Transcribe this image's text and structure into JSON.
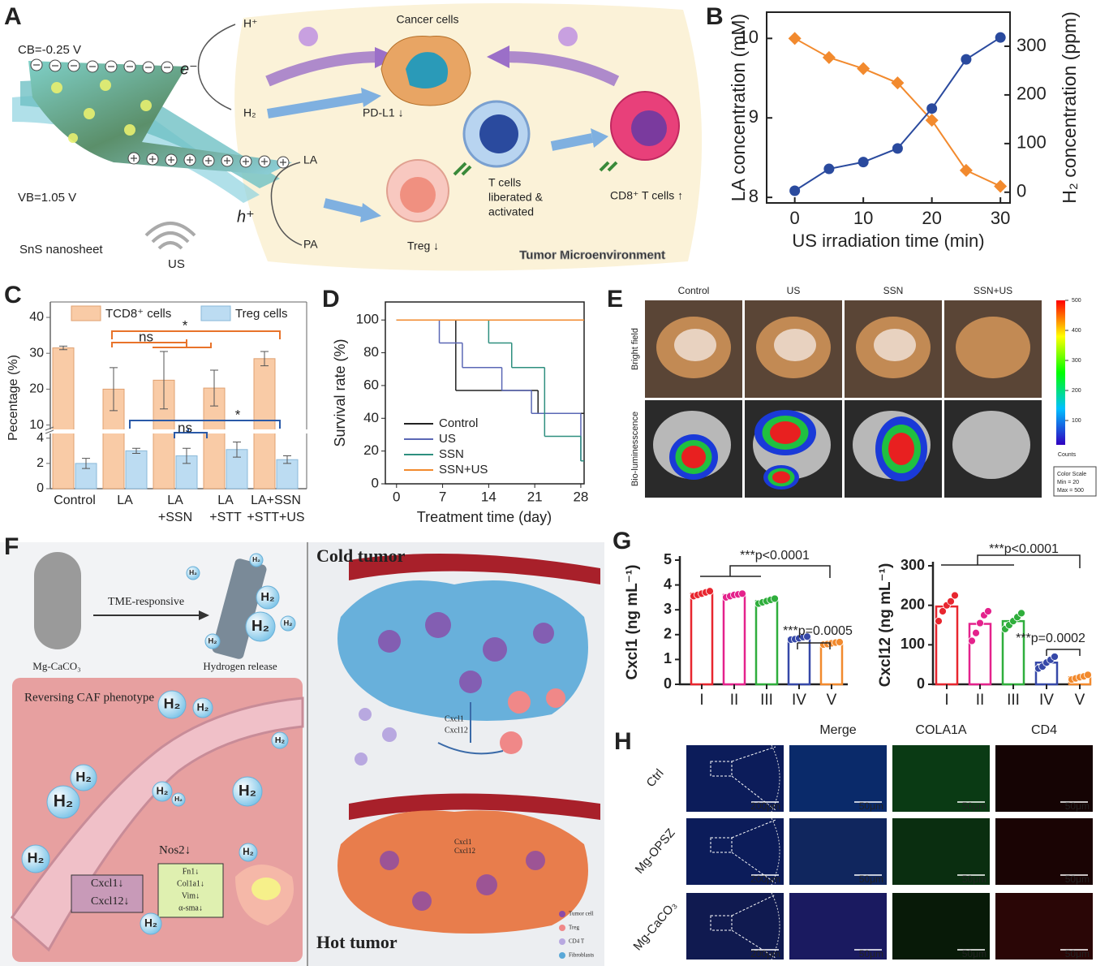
{
  "panel_letters": [
    "A",
    "B",
    "C",
    "D",
    "E",
    "F",
    "G",
    "H"
  ],
  "panel_a": {
    "cb": "CB=-0.25 V",
    "e": "e⁻",
    "vb": "VB=1.05 V",
    "h": "h⁺",
    "sns": "SnS nanosheet",
    "us": "US",
    "hplus": "H⁺",
    "h2": "H₂",
    "la": "LA",
    "pa": "PA",
    "cancer": "Cancer cells",
    "pdl1": "PD-L1 ↓",
    "tcells": [
      "T cells",
      "liberated &",
      "activated"
    ],
    "treg": "Treg ↓",
    "cd8": "CD8⁺ T cells ↑",
    "tme": "Tumor Microenvironment"
  },
  "chart_data": [
    {
      "type": "line",
      "xlabel": "US irradiation time (min)",
      "ylabel": "LA concentration (mM)",
      "y2label": "H₂ concentration (ppm)",
      "x": [
        0,
        5,
        10,
        15,
        20,
        25,
        30
      ],
      "series": [
        {
          "color": "#f28a2e",
          "marker": "diamond",
          "values": [
            10.0,
            9.76,
            9.62,
            9.44,
            8.97,
            8.34,
            8.14
          ]
        },
        {
          "color": "#2a4a9e",
          "marker": "circle",
          "axis": "y2",
          "values": [
            3,
            48,
            62,
            90,
            172,
            273,
            318
          ]
        }
      ],
      "xlim": [
        -4.1,
        31.4
      ],
      "xticks": [
        0,
        10,
        20,
        30
      ],
      "ylim": [
        7.93,
        10.33
      ],
      "yticks": [
        8,
        9,
        10
      ],
      "y2lim": [
        -22,
        370
      ],
      "y2ticks": [
        0,
        100,
        200,
        300
      ]
    },
    {
      "type": "bar",
      "ylabel": "Pecentage (%)",
      "categories": [
        [
          "Control"
        ],
        [
          "LA"
        ],
        [
          "LA",
          "+SSN"
        ],
        [
          "LA",
          "+STT"
        ],
        [
          "LA+SSN",
          "+STT+US"
        ]
      ],
      "series": [
        {
          "name": "TCD8⁺ cells",
          "color": "#f9cba6",
          "values": [
            31.5,
            20,
            22.5,
            20.3,
            28.5
          ],
          "errors": [
            0.5,
            6,
            8,
            5,
            2
          ]
        },
        {
          "name": "Treg cells",
          "color": "#bcdcf2",
          "values": [
            2,
            3,
            2.6,
            3.1,
            2.3
          ],
          "errors": [
            0.4,
            0.2,
            0.6,
            0.6,
            0.3
          ]
        }
      ],
      "ylim": [
        0,
        40
      ],
      "ybreak": [
        4.5,
        9
      ],
      "yticks": [
        0,
        2,
        4,
        10,
        20,
        30,
        40
      ],
      "annotations": [
        "ns",
        "*",
        "ns",
        "*"
      ]
    },
    {
      "type": "step",
      "xlabel": "Treatment time (day)",
      "ylabel": "Survival rate (%)",
      "series": [
        {
          "name": "Control",
          "color": "#222222",
          "x": [
            0,
            9,
            21.5,
            28.5
          ],
          "values": [
            100,
            57,
            43,
            43
          ]
        },
        {
          "name": "US",
          "color": "#5a67b5",
          "x": [
            0,
            6.5,
            10,
            16,
            20.5,
            28,
            28.5
          ],
          "values": [
            100,
            86,
            71,
            57,
            43,
            14,
            14
          ]
        },
        {
          "name": "SSN",
          "color": "#2e8f7f",
          "x": [
            0,
            14,
            17.5,
            22.5,
            28,
            28.5
          ],
          "values": [
            100,
            86,
            71,
            29,
            14,
            14
          ]
        },
        {
          "name": "SSN+US",
          "color": "#f28a2e",
          "x": [
            0,
            28.5
          ],
          "values": [
            100,
            100
          ]
        }
      ],
      "xlim": [
        -1.7,
        28.5
      ],
      "xticks": [
        0,
        7,
        14,
        21,
        28
      ],
      "ylim": [
        0,
        111
      ],
      "yticks": [
        0,
        20,
        40,
        60,
        80,
        100
      ]
    },
    {
      "type": "bar",
      "ylabel": "Cxcl1 (ng mL⁻¹)",
      "categories": [
        "I",
        "II",
        "III",
        "IV",
        "V"
      ],
      "values": [
        3.65,
        3.6,
        3.35,
        1.85,
        1.65
      ],
      "colors": [
        "#e8262f",
        "#e4228c",
        "#2fae3c",
        "#3648a8",
        "#f28a2e"
      ],
      "points": [
        [
          3.55,
          3.6,
          3.65,
          3.7,
          3.75
        ],
        [
          3.5,
          3.55,
          3.6,
          3.62,
          3.65
        ],
        [
          3.25,
          3.3,
          3.35,
          3.4,
          3.45
        ],
        [
          1.8,
          1.82,
          1.85,
          1.9,
          1.92
        ],
        [
          1.6,
          1.62,
          1.65,
          1.68,
          1.7
        ]
      ],
      "ylim": [
        0,
        5
      ],
      "yticks": [
        0,
        1,
        2,
        3,
        4,
        5
      ],
      "annotations": [
        "***p<0.0001",
        "***p=0.0005"
      ]
    },
    {
      "type": "bar",
      "ylabel": "Cxcl12 (ng mL⁻¹)",
      "categories": [
        "I",
        "II",
        "III",
        "IV",
        "V"
      ],
      "values": [
        197,
        153,
        160,
        55,
        18
      ],
      "colors": [
        "#e8262f",
        "#e4228c",
        "#2fae3c",
        "#3648a8",
        "#f28a2e"
      ],
      "points": [
        [
          160,
          185,
          200,
          210,
          225
        ],
        [
          110,
          130,
          155,
          175,
          185
        ],
        [
          140,
          150,
          160,
          170,
          180
        ],
        [
          40,
          45,
          55,
          62,
          70
        ],
        [
          12,
          15,
          18,
          20,
          24
        ]
      ],
      "ylim": [
        0,
        300
      ],
      "yticks": [
        0,
        100,
        200,
        300
      ],
      "annotations": [
        "***p<0.0001",
        "***p=0.0002"
      ]
    }
  ],
  "panel_e": {
    "cols": [
      "Control",
      "US",
      "SSN",
      "SSN+US"
    ],
    "rows": [
      "Bright field",
      "Bio-luminesscence"
    ],
    "colorbar": {
      "ticks": [
        500,
        400,
        300,
        200,
        100
      ],
      "label": "Counts",
      "scale_title": "Color Scale",
      "min": "Min = 20",
      "max": "Max = 500"
    }
  },
  "panel_f": {
    "tme": "TME-responsive",
    "mg": "Mg-CaCO₃",
    "release": "Hydrogen release",
    "caf": "Reversing CAF phenotype",
    "nos2": "Nos2↓",
    "genes": [
      "Fn1↓",
      "Col1a1↓",
      "Vim↓",
      "α-sma↓"
    ],
    "cxcl1": "Cxcl1↓",
    "cxcl12": "Cxcl12↓",
    "cold": "Cold tumor",
    "hot": "Hot tumor",
    "cx1": "Cxcl1",
    "cx12": "Cxcl12",
    "cx1b": "Cxcl1",
    "cx12b": "Cxcl12",
    "legend": [
      "Tumor cell",
      "Treg",
      "CD4 T",
      "Fibroblasts"
    ],
    "h2": "H₂"
  },
  "panel_h": {
    "cols": [
      "Merge",
      "COLA1A",
      "CD4"
    ],
    "rows": [
      "Ctrl",
      "Mg-OPSZ",
      "Mg-CaCO₃"
    ],
    "scale_low": "200μm",
    "scale_high": "50μm"
  }
}
